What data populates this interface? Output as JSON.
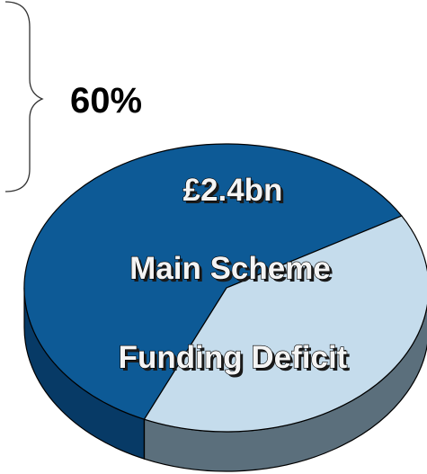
{
  "chart_data": {
    "type": "pie",
    "slices": [
      {
        "label": "Main Scheme Funding Deficit",
        "percent": 60,
        "color": "#0d5a96",
        "side_color": "#073a66"
      },
      {
        "label": "",
        "percent": 40,
        "color": "#c5dcec",
        "side_color": "#5b6f7c"
      }
    ],
    "callout_label": "60%",
    "center_labels": [
      "£2.4bn",
      "Main Scheme",
      "Funding Deficit"
    ],
    "outline_color": "#000000"
  }
}
